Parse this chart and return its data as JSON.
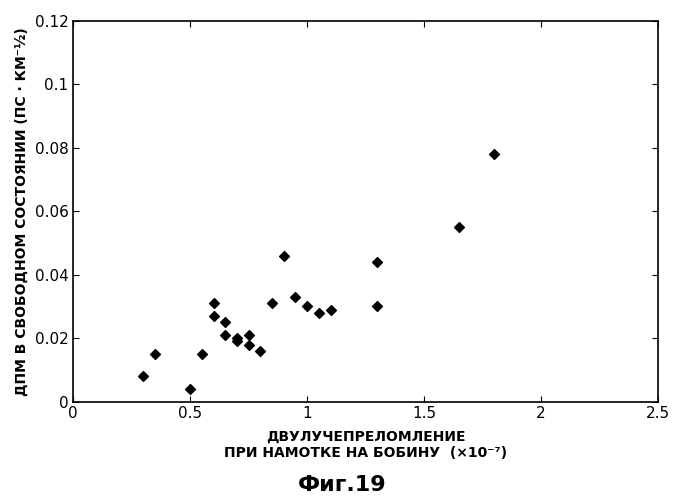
{
  "x_data": [
    0.3,
    0.35,
    0.5,
    0.55,
    0.6,
    0.6,
    0.65,
    0.65,
    0.7,
    0.7,
    0.75,
    0.75,
    0.8,
    0.85,
    0.9,
    0.95,
    1.0,
    1.05,
    1.1,
    1.3,
    1.3,
    1.65,
    1.8
  ],
  "y_data": [
    0.008,
    0.015,
    0.004,
    0.015,
    0.027,
    0.031,
    0.025,
    0.021,
    0.02,
    0.019,
    0.018,
    0.021,
    0.016,
    0.031,
    0.046,
    0.033,
    0.03,
    0.028,
    0.029,
    0.044,
    0.03,
    0.055,
    0.078
  ],
  "marker": "D",
  "marker_color": "#000000",
  "marker_size": 5,
  "xlim": [
    0,
    2.5
  ],
  "ylim": [
    0,
    0.12
  ],
  "xtick_vals": [
    0,
    0.5,
    1.0,
    1.5,
    2.0,
    2.5
  ],
  "xtick_labels": [
    "0",
    "0.5",
    "1",
    "1.5",
    "2",
    "2.5"
  ],
  "ytick_vals": [
    0,
    0.02,
    0.04,
    0.06,
    0.08,
    0.1,
    0.12
  ],
  "ytick_labels": [
    "0",
    "0.02",
    "0.04",
    "0.06",
    "0.08",
    "0.1",
    "0.12"
  ],
  "xlabel_line1": "ДВУЛУЧЕПРЕЛОМЛЕНИЕ",
  "xlabel_line2": "ПРИ НАМОТКЕ НА БОБИНУ  (×10⁻⁷)",
  "ylabel": "ДПМ В СВОБОДНОМ СОСТОЯНИИ (ПС · КМ⁻½)",
  "title": "Фиг.19",
  "background_color": "#ffffff",
  "tick_fontsize": 11,
  "label_fontsize": 10,
  "title_fontsize": 16
}
